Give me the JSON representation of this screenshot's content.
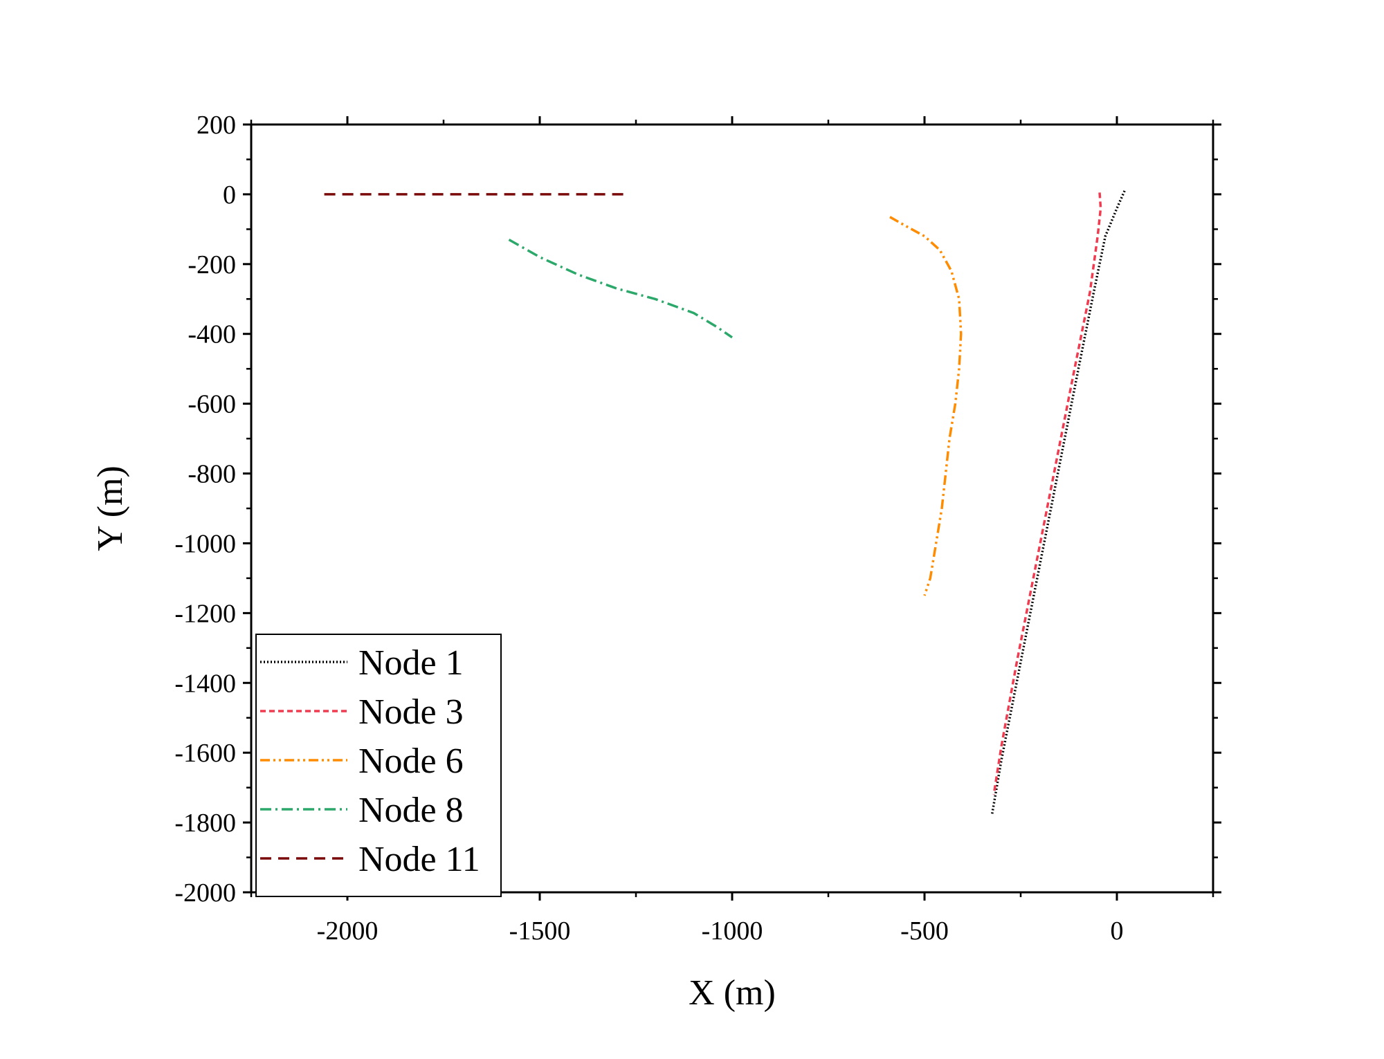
{
  "chart_data": {
    "type": "line",
    "title": "",
    "xlabel": "X (m)",
    "ylabel": "Y (m)",
    "xlim": [
      -2250,
      250
    ],
    "ylim": [
      -2000,
      200
    ],
    "x_ticks": [
      -2000,
      -1500,
      -1000,
      -500,
      0
    ],
    "x_tick_labels": [
      "-2000",
      "-1500",
      "-1000",
      "-500",
      "0"
    ],
    "y_ticks": [
      200,
      0,
      -200,
      -400,
      -600,
      -800,
      -1000,
      -1200,
      -1400,
      -1600,
      -1800,
      -2000
    ],
    "y_tick_labels": [
      "200",
      "0",
      "-200",
      "-400",
      "-600",
      "-800",
      "-1000",
      "-1200",
      "-1400",
      "-1600",
      "-1800",
      "-2000"
    ],
    "grid": false,
    "legend_position": "bottom-left",
    "series": [
      {
        "name": "Node 1",
        "color": "#000000",
        "dash": "dotted",
        "x": [
          20,
          0,
          -30,
          -60,
          -100,
          -150,
          -200,
          -250,
          -300,
          -325
        ],
        "y": [
          10,
          -40,
          -120,
          -280,
          -500,
          -780,
          -1060,
          -1340,
          -1620,
          -1780
        ]
      },
      {
        "name": "Node 3",
        "color": "#f03c50",
        "dash": "dashed",
        "x": [
          -45,
          -42,
          -50,
          -70,
          -110,
          -160,
          -210,
          -260,
          -300,
          -320
        ],
        "y": [
          5,
          -40,
          -120,
          -280,
          -500,
          -780,
          -1060,
          -1340,
          -1580,
          -1720
        ]
      },
      {
        "name": "Node 6",
        "color": "#ff8c00",
        "dash": "dash-dot-dot",
        "x": [
          -590,
          -550,
          -500,
          -460,
          -430,
          -410,
          -405,
          -410,
          -420,
          -435,
          -445,
          -455,
          -470,
          -485,
          -500
        ],
        "y": [
          -65,
          -90,
          -120,
          -160,
          -220,
          -300,
          -400,
          -500,
          -600,
          -700,
          -800,
          -900,
          -1000,
          -1100,
          -1150
        ]
      },
      {
        "name": "Node 8",
        "color": "#2ca86b",
        "dash": "dash-dot",
        "x": [
          -1580,
          -1500,
          -1400,
          -1300,
          -1200,
          -1100,
          -1040,
          -1000
        ],
        "y": [
          -130,
          -180,
          -230,
          -270,
          -300,
          -340,
          -380,
          -410
        ]
      },
      {
        "name": "Node 11",
        "color": "#7a0a0a",
        "dash": "dashed-long",
        "x": [
          -2060,
          -1900,
          -1700,
          -1500,
          -1280
        ],
        "y": [
          0,
          0,
          0,
          0,
          0
        ]
      }
    ]
  }
}
